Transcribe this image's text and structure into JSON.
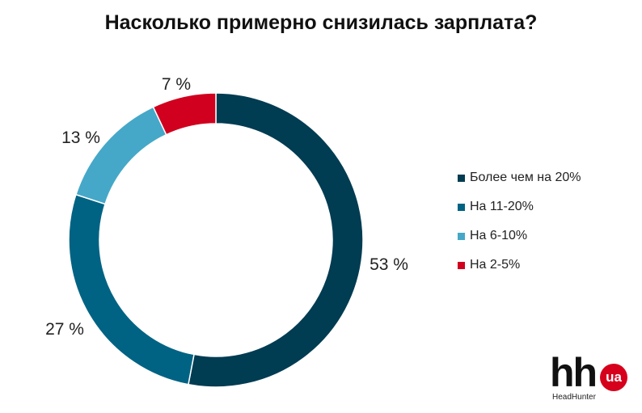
{
  "chart_data": {
    "type": "pie",
    "title": "Насколько примерно снизилась зарплата?",
    "legend_position": "right",
    "slices": [
      {
        "name": "Более чем на 20%",
        "value": 53,
        "label": "53 %",
        "color": "#003c52"
      },
      {
        "name": "На 11-20%",
        "value": 27,
        "label": "27 %",
        "color": "#006384"
      },
      {
        "name": "На 6-10%",
        "value": 13,
        "label": "13 %",
        "color": "#45a8c8"
      },
      {
        "name": "На 2-5%",
        "value": 7,
        "label": "7 %",
        "color": "#d0001e"
      }
    ]
  },
  "logo": {
    "mark": "hh",
    "badge": "ua",
    "subtitle": "HeadHunter",
    "badge_color": "#d6001c"
  }
}
